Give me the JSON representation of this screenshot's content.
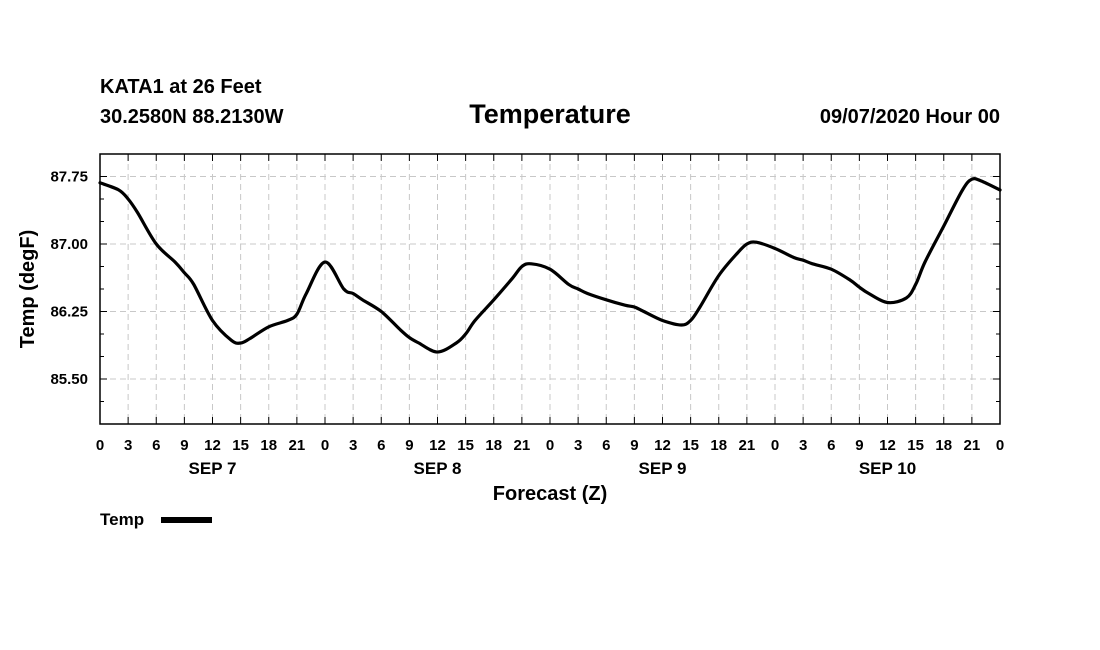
{
  "header": {
    "station": "KATA1 at 26 Feet",
    "coords": "30.2580N 88.2130W",
    "title": "Temperature",
    "datetime": "09/07/2020 Hour 00"
  },
  "chart_data": {
    "type": "line",
    "title": "Temperature",
    "xlabel": "Forecast (Z)",
    "ylabel": "Temp (degF)",
    "xlim": [
      0,
      96
    ],
    "ylim": [
      85.0,
      88.0
    ],
    "y_ticks": [
      85.5,
      86.25,
      87.0,
      87.75
    ],
    "y_tick_labels": [
      "85.50",
      "86.25",
      "87.00",
      "87.75"
    ],
    "x_tick_step_hours": 3,
    "x_tick_labels": [
      "0",
      "3",
      "6",
      "9",
      "12",
      "15",
      "18",
      "21",
      "0",
      "3",
      "6",
      "9",
      "12",
      "15",
      "18",
      "21",
      "0",
      "3",
      "6",
      "9",
      "12",
      "15",
      "18",
      "21",
      "0",
      "3",
      "6",
      "9",
      "12",
      "15",
      "18",
      "21",
      "0"
    ],
    "day_labels": [
      {
        "label": "SEP 7",
        "hour": 12
      },
      {
        "label": "SEP 8",
        "hour": 36
      },
      {
        "label": "SEP 9",
        "hour": 60
      },
      {
        "label": "SEP 10",
        "hour": 84
      }
    ],
    "grid": true,
    "legend": "bottom-left",
    "series": [
      {
        "name": "Temp",
        "x": [
          0,
          2,
          3,
          4,
          6,
          8,
          9,
          10,
          12,
          14,
          15,
          16,
          18,
          20,
          21,
          22,
          24,
          26,
          27,
          28,
          30,
          32,
          33,
          34,
          36,
          38,
          39,
          40,
          42,
          44,
          45,
          46,
          48,
          50,
          51,
          52,
          54,
          56,
          57,
          58,
          60,
          62,
          63,
          64,
          66,
          68,
          69,
          70,
          72,
          74,
          75,
          76,
          78,
          80,
          81,
          82,
          84,
          86,
          87,
          88,
          90,
          92,
          93,
          94,
          96
        ],
        "values": [
          87.68,
          87.6,
          87.5,
          87.35,
          87.0,
          86.8,
          86.68,
          86.55,
          86.15,
          85.93,
          85.9,
          85.95,
          86.08,
          86.15,
          86.22,
          86.45,
          86.8,
          86.5,
          86.45,
          86.38,
          86.25,
          86.05,
          85.96,
          85.9,
          85.8,
          85.9,
          86.0,
          86.15,
          86.38,
          86.62,
          86.75,
          86.78,
          86.72,
          86.55,
          86.5,
          86.45,
          86.38,
          86.32,
          86.3,
          86.25,
          86.15,
          86.1,
          86.15,
          86.3,
          86.65,
          86.9,
          87.0,
          87.02,
          86.95,
          86.85,
          86.82,
          86.78,
          86.72,
          86.6,
          86.52,
          86.45,
          86.35,
          86.4,
          86.55,
          86.8,
          87.2,
          87.6,
          87.72,
          87.7,
          87.6
        ]
      }
    ]
  }
}
